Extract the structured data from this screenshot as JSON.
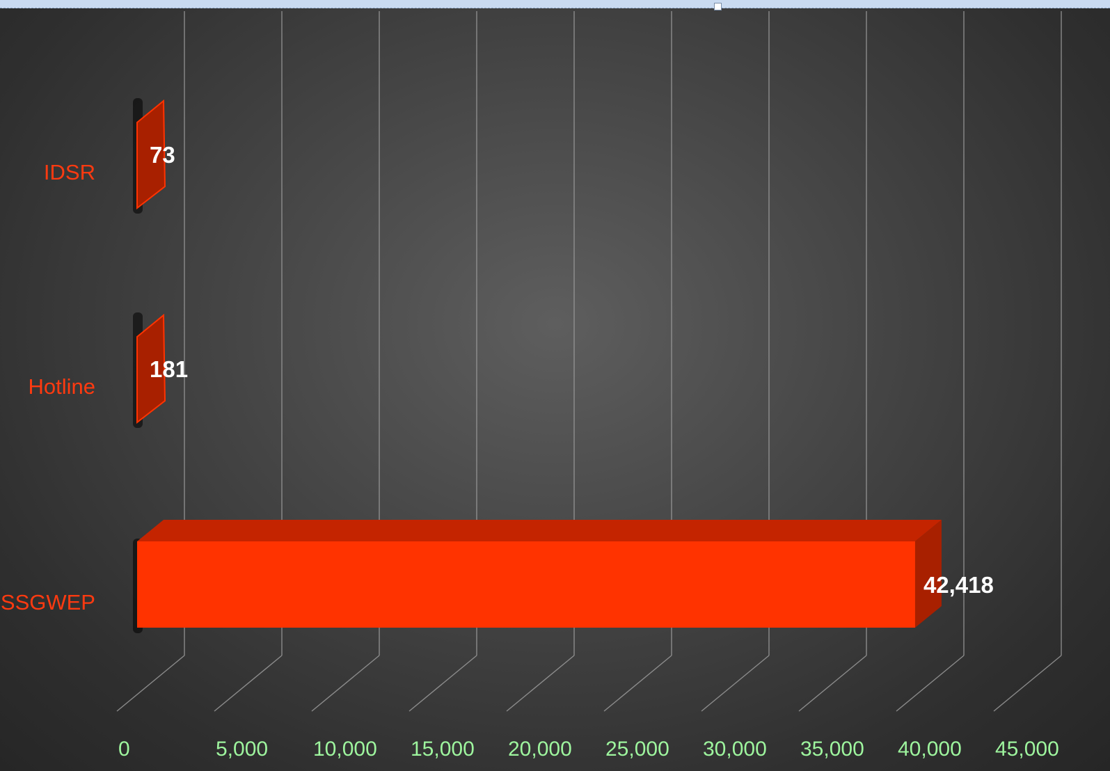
{
  "chart_data": {
    "type": "bar",
    "orientation": "horizontal",
    "style": "3d",
    "categories": [
      "IDSR",
      "Hotline",
      "SSGWEP"
    ],
    "values": [
      73,
      181,
      42418
    ],
    "data_labels": [
      "73",
      "181",
      "42,418"
    ],
    "xlim": [
      0,
      45000
    ],
    "x_ticks": [
      0,
      5000,
      10000,
      15000,
      20000,
      25000,
      30000,
      35000,
      40000,
      45000
    ],
    "x_tick_labels": [
      "0",
      "5,000",
      "10,000",
      "15,000",
      "20,000",
      "25,000",
      "30,000",
      "35,000",
      "40,000",
      "45,000"
    ],
    "title": "",
    "xlabel": "",
    "ylabel": "",
    "grid": true,
    "legend": "none",
    "colors": {
      "bar_front": "#ff3300",
      "bar_top": "#c42400",
      "bar_side": "#a82000",
      "small_bar": "#a82000",
      "category_label": "#ff3a10",
      "tick_label": "#9ef59e",
      "data_label": "#ffffff",
      "gridline": "#9a9a9a"
    }
  }
}
